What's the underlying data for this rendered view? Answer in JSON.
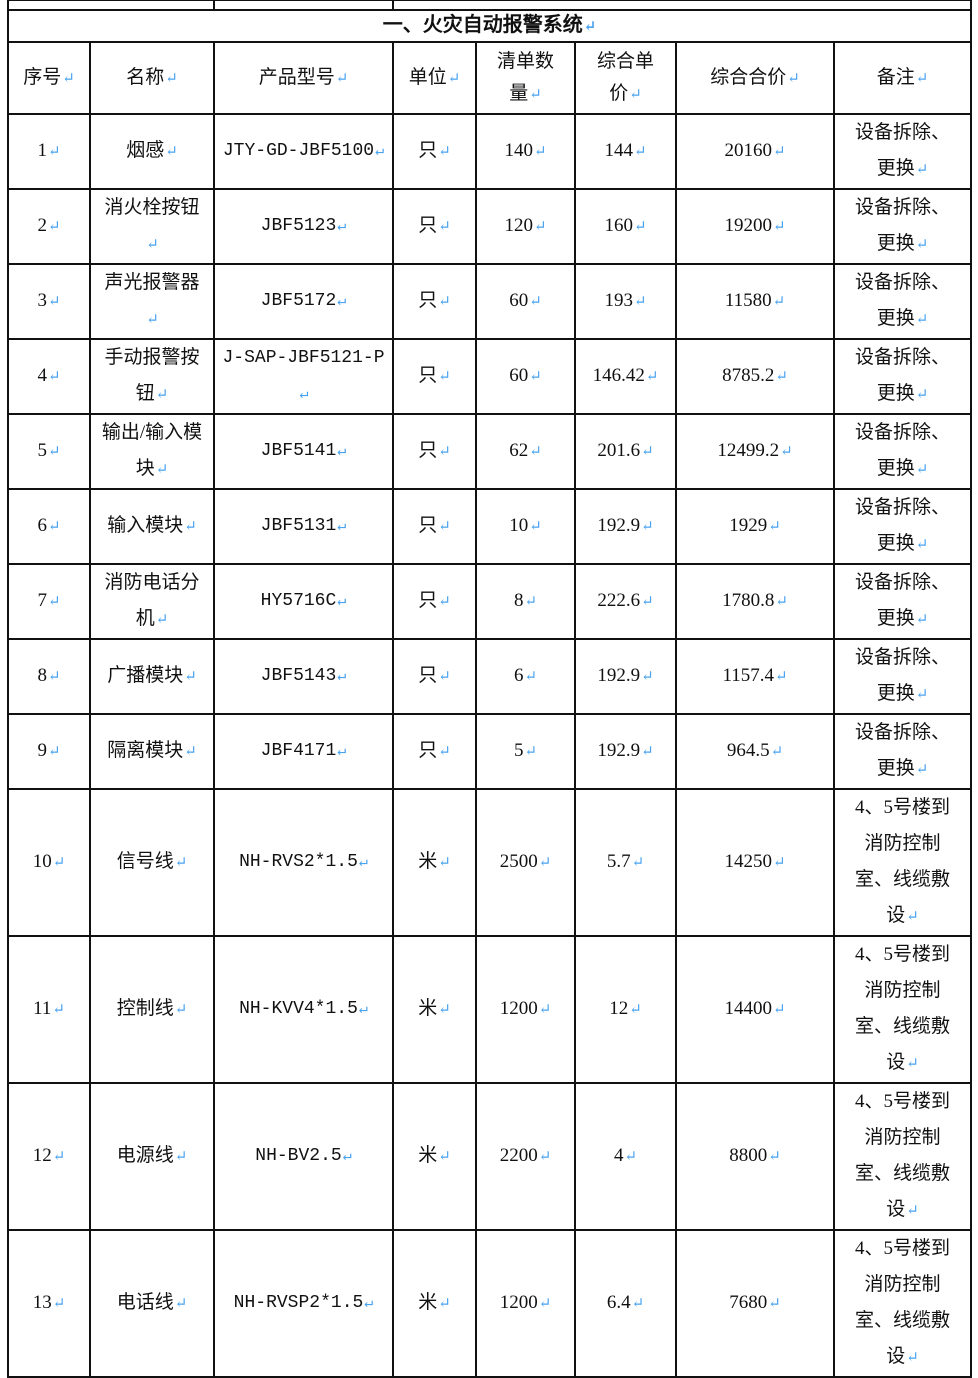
{
  "section_title": "一、火灾自动报警系统",
  "paragraph_mark_color": "#4aa3f0",
  "headers": [
    "序号",
    "名称",
    "产品型号",
    "单位",
    "清单数量",
    "综合单价",
    "综合合价",
    "备注"
  ],
  "rows": [
    [
      "1",
      "烟感",
      "JTY-GD-JBF5100",
      "只",
      "140",
      "144",
      "20160",
      "设备拆除、更换"
    ],
    [
      "2",
      "消火栓按钮",
      "JBF5123",
      "只",
      "120",
      "160",
      "19200",
      "设备拆除、更换"
    ],
    [
      "3",
      "声光报警器",
      "JBF5172",
      "只",
      "60",
      "193",
      "11580",
      "设备拆除、更换"
    ],
    [
      "4",
      "手动报警按钮",
      "J-SAP-JBF5121-P",
      "只",
      "60",
      "146.42",
      "8785.2",
      "设备拆除、更换"
    ],
    [
      "5",
      "输出/输入模块",
      "JBF5141",
      "只",
      "62",
      "201.6",
      "12499.2",
      "设备拆除、更换"
    ],
    [
      "6",
      "输入模块",
      "JBF5131",
      "只",
      "10",
      "192.9",
      "1929",
      "设备拆除、更换"
    ],
    [
      "7",
      "消防电话分机",
      "HY5716C",
      "只",
      "8",
      "222.6",
      "1780.8",
      "设备拆除、更换"
    ],
    [
      "8",
      "广播模块",
      "JBF5143",
      "只",
      "6",
      "192.9",
      "1157.4",
      "设备拆除、更换"
    ],
    [
      "9",
      "隔离模块",
      "JBF4171",
      "只",
      "5",
      "192.9",
      "964.5",
      "设备拆除、更换"
    ],
    [
      "10",
      "信号线",
      "NH-RVS2*1.5",
      "米",
      "2500",
      "5.7",
      "14250",
      "4、5号楼到消防控制室、线缆敷设"
    ],
    [
      "11",
      "控制线",
      "NH-KVV4*1.5",
      "米",
      "1200",
      "12",
      "14400",
      "4、5号楼到消防控制室、线缆敷设"
    ],
    [
      "12",
      "电源线",
      "NH-BV2.5",
      "米",
      "2200",
      "4",
      "8800",
      "4、5号楼到消防控制室、线缆敷设"
    ],
    [
      "13",
      "电话线",
      "NH-RVSP2*1.5",
      "米",
      "1200",
      "6.4",
      "7680",
      "4、5号楼到消防控制室、线缆敷设"
    ]
  ]
}
